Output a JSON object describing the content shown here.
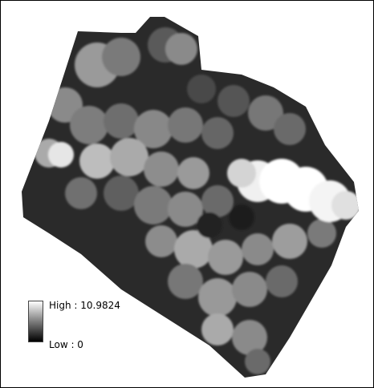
{
  "legend": {
    "high_label": "High : 10.9824",
    "low_label": "Low : 0"
  },
  "raster": {
    "color_ramp": [
      "#000000",
      "#ffffff"
    ],
    "background": "#ffffff"
  }
}
